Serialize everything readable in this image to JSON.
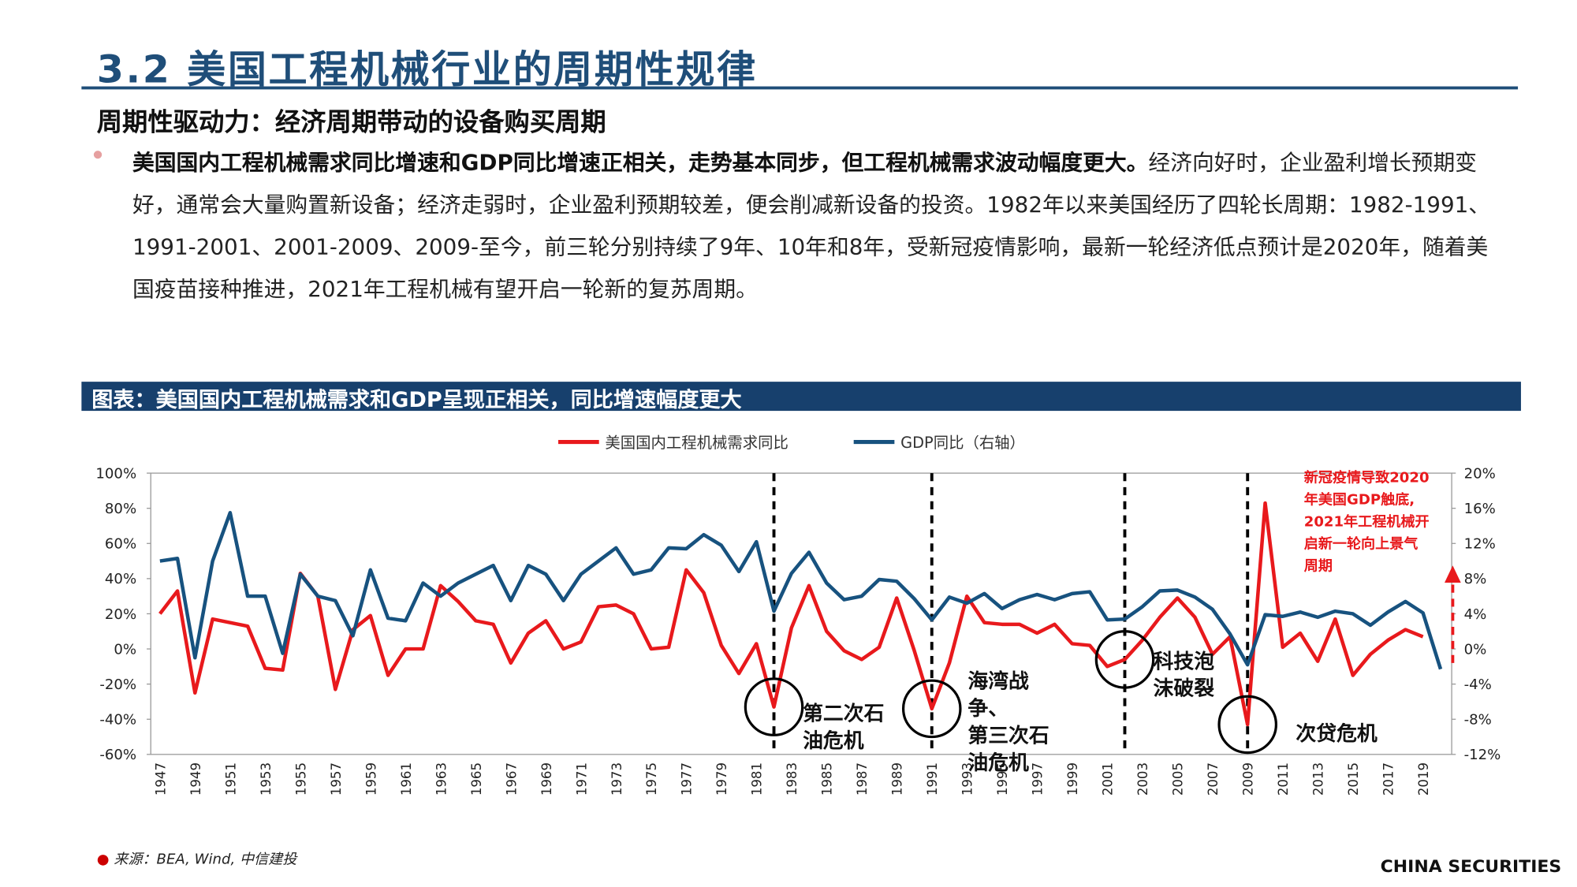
{
  "header": {
    "title": "3.2 美国工程机械行业的周期性规律",
    "subtitle": "周期性驱动力：经济周期带动的设备购买周期"
  },
  "bullet": {
    "bold": "美国国内工程机械需求同比增速和GDP同比增速正相关，走势基本同步，但工程机械需求波动幅度更大。",
    "text": "经济向好时，企业盈利增长预期变好，通常会大量购置新设备；经济走弱时，企业盈利预期较差，便会削减新设备的投资。1982年以来美国经历了四轮长周期：1982-1991、1991-2001、2001-2009、2009-至今，前三轮分别持续了9年、10年和8年，受新冠疫情影响，最新一轮经济低点预计是2020年，随着美国疫苗接种推进，2021年工程机械有望开启一轮新的复苏周期。"
  },
  "footer": {
    "source": "来源：BEA, Wind, 中信建投",
    "logo": "CHINA SECURITIES"
  },
  "chart_data": {
    "type": "line",
    "title": "图表：美国国内工程机械需求和GDP呈现正相关，同比增速幅度更大",
    "categories": [
      "1947",
      null,
      "1949",
      null,
      "1951",
      null,
      "1953",
      null,
      "1955",
      null,
      "1957",
      null,
      "1959",
      null,
      "1961",
      null,
      "1963",
      null,
      "1965",
      null,
      "1967",
      null,
      "1969",
      null,
      "1971",
      null,
      "1973",
      null,
      "1975",
      null,
      "1977",
      null,
      "1979",
      null,
      "1981",
      null,
      "1983",
      null,
      "1985",
      null,
      "1987",
      null,
      "1989",
      null,
      "1991",
      null,
      "1993",
      null,
      "1995",
      null,
      "1997",
      null,
      "1999",
      null,
      "2001",
      null,
      "2003",
      null,
      "2005",
      null,
      "2007",
      null,
      "2009",
      null,
      "2011",
      null,
      "2013",
      null,
      "2015",
      null,
      "2017",
      null,
      "2019",
      null
    ],
    "series": [
      {
        "name": "美国国内工程机械需求同比",
        "color": "#e8191c",
        "axis": "y",
        "values": [
          20,
          33,
          -25,
          17,
          15,
          13,
          -11,
          -12,
          43,
          30,
          -23,
          11,
          19,
          -15,
          0,
          0,
          36,
          27,
          16,
          14,
          -8,
          9,
          16,
          0,
          4,
          24,
          25,
          20,
          0,
          1,
          45,
          32,
          2,
          -14,
          3,
          -33,
          12,
          36,
          10,
          -1,
          -6,
          1,
          29,
          -1,
          -34,
          -8,
          30,
          15,
          14,
          14,
          9,
          14,
          3,
          2,
          -10,
          -6,
          5,
          18,
          29,
          18,
          -3,
          7,
          -43,
          83,
          1,
          9,
          -7,
          17,
          -15,
          -3,
          5,
          11,
          7,
          null
        ]
      },
      {
        "name": "GDP同比（右轴）",
        "color": "#17527f",
        "axis": "y2",
        "values": [
          10,
          10.3,
          -1,
          10,
          15.5,
          6,
          6,
          -0.5,
          8.5,
          6,
          5.5,
          1.5,
          9,
          3.5,
          3.2,
          7.5,
          6,
          7.5,
          8.5,
          9.5,
          5.5,
          9.5,
          8.5,
          5.5,
          8.5,
          10,
          11.5,
          8.5,
          9,
          11.5,
          11.4,
          13,
          11.8,
          8.8,
          12.2,
          4.3,
          8.6,
          11,
          7.5,
          5.6,
          6,
          7.9,
          7.7,
          5.7,
          3.3,
          5.9,
          5.2,
          6.3,
          4.6,
          5.6,
          6.2,
          5.6,
          6.3,
          6.5,
          3.3,
          3.4,
          4.8,
          6.6,
          6.7,
          5.9,
          4.5,
          1.7,
          -1.8,
          3.9,
          3.7,
          4.2,
          3.6,
          4.3,
          4,
          2.7,
          4.2,
          5.4,
          4.1,
          -2.3
        ]
      }
    ],
    "ylim": [
      -60,
      100
    ],
    "yticks": [
      {
        "value": -60,
        "label": "-60%"
      },
      {
        "value": -40,
        "label": "-40%"
      },
      {
        "value": -20,
        "label": "-20%"
      },
      {
        "value": 0,
        "label": "0%"
      },
      {
        "value": 20,
        "label": "20%"
      },
      {
        "value": 40,
        "label": "40%"
      },
      {
        "value": 60,
        "label": "60%"
      },
      {
        "value": 80,
        "label": "80%"
      },
      {
        "value": 100,
        "label": "100%"
      }
    ],
    "y2lim": [
      -12,
      20
    ],
    "y2ticks": [
      {
        "value": -12,
        "label": "-12%"
      },
      {
        "value": -8,
        "label": "-8%"
      },
      {
        "value": -4,
        "label": "-4%"
      },
      {
        "value": 0,
        "label": "0%"
      },
      {
        "value": 4,
        "label": "4%"
      },
      {
        "value": 8,
        "label": "8%"
      },
      {
        "value": 12,
        "label": "12%"
      },
      {
        "value": 16,
        "label": "16%"
      },
      {
        "value": 20,
        "label": "20%"
      }
    ],
    "legend": "top",
    "events": [
      {
        "index": 35,
        "lines": [
          "第二次石",
          "油危机"
        ]
      },
      {
        "index": 44,
        "lines": [
          "海湾战",
          "争、",
          "第三次石",
          "油危机"
        ]
      },
      {
        "index": 55,
        "lines": [
          "科技泡",
          "沫破裂"
        ]
      },
      {
        "index": 62,
        "lines": [
          "次贷危机"
        ]
      }
    ],
    "note": {
      "color": "#e8191c",
      "lines": [
        "新冠疫情导致2020",
        "年美国GDP触底,",
        "2021年工程机械开",
        "启新一轮向上景气",
        "周期"
      ]
    }
  }
}
